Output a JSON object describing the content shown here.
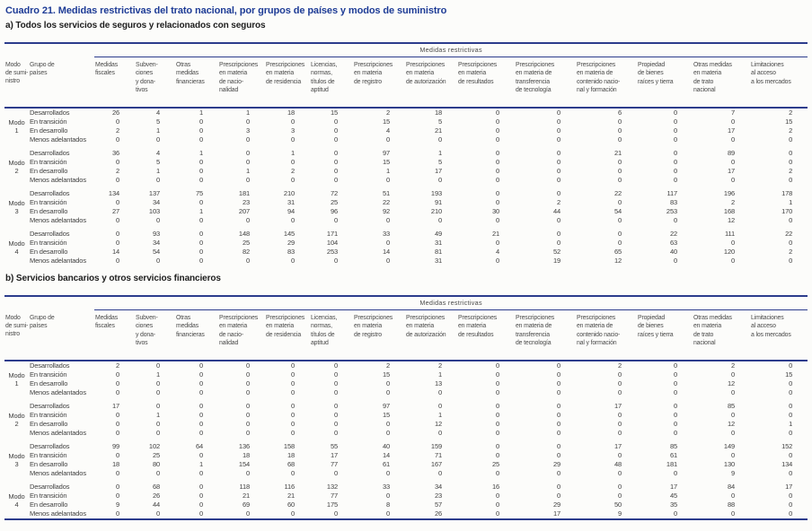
{
  "page": {
    "title": "Cuadro 21. Medidas restrictivas del trato nacional, por grupos de países y modos de suministro"
  },
  "colors": {
    "accent_navy": "#2c3c8c",
    "title_blue": "#1e3c96",
    "body_text": "#3f3f3f",
    "background": "#fcfcfa"
  },
  "table_header": {
    "group_label": "Medidas restrictivas",
    "mode_col": "Modo\nde sumi-\nnistro",
    "country_col": "Grupo de\npaíses",
    "measure_cols": [
      "Medidas\nfiscales",
      "Subven-\nciones\ny dona-\ntivos",
      "Otras\nmedidas\nfinancieras",
      "Prescripciones\nen materia\nde nacio-\nnalidad",
      "Prescripciones\nen materia\nde residencia",
      "Licencias,\nnormas,\ntítulos de\naptitud",
      "Prescripciones\nen materia\nde registro",
      "Prescripciones\nen materia\nde autorización",
      "Prescripciones\nen materia\nde resultados",
      "Prescripciones\nen materia de\ntransferencia\nde tecnología",
      "Prescripciones\nen materia de\ncontenido nacio-\nnal y formación",
      "Propiedad\nde bienes\nraíces y tierra",
      "Otras medidas\nen materia\nde trato\nnacional",
      "Limitaciones\nal acceso\na los mercados"
    ]
  },
  "tables": [
    {
      "subtitle": "a) Todos los servicios de seguros y relacionados con seguros",
      "modes": [
        {
          "label": "Modo\n1",
          "rows": [
            {
              "group": "Desarrollados",
              "values": [
                26,
                4,
                1,
                1,
                18,
                15,
                2,
                18,
                0,
                0,
                6,
                0,
                7,
                2
              ]
            },
            {
              "group": "En transición",
              "values": [
                0,
                5,
                0,
                0,
                0,
                0,
                15,
                5,
                0,
                0,
                0,
                0,
                0,
                15
              ]
            },
            {
              "group": "En desarrollo",
              "values": [
                2,
                1,
                0,
                3,
                3,
                0,
                4,
                21,
                0,
                0,
                0,
                0,
                17,
                2
              ]
            },
            {
              "group": "Menos adelantados",
              "values": [
                0,
                0,
                0,
                0,
                0,
                0,
                0,
                0,
                0,
                0,
                0,
                0,
                0,
                0
              ]
            }
          ]
        },
        {
          "label": "Modo\n2",
          "rows": [
            {
              "group": "Desarrollados",
              "values": [
                36,
                4,
                1,
                0,
                1,
                0,
                97,
                1,
                0,
                0,
                21,
                0,
                89,
                0
              ]
            },
            {
              "group": "En transición",
              "values": [
                0,
                5,
                0,
                0,
                0,
                0,
                15,
                5,
                0,
                0,
                0,
                0,
                0,
                0
              ]
            },
            {
              "group": "En desarrollo",
              "values": [
                2,
                1,
                0,
                1,
                2,
                0,
                1,
                17,
                0,
                0,
                0,
                0,
                17,
                2
              ]
            },
            {
              "group": "Menos adelantados",
              "values": [
                0,
                0,
                0,
                0,
                0,
                0,
                0,
                0,
                0,
                0,
                0,
                0,
                0,
                0
              ]
            }
          ]
        },
        {
          "label": "Modo\n3",
          "rows": [
            {
              "group": "Desarrollados",
              "values": [
                134,
                137,
                75,
                181,
                210,
                72,
                51,
                193,
                0,
                0,
                22,
                117,
                196,
                178
              ]
            },
            {
              "group": "En transición",
              "values": [
                0,
                34,
                0,
                23,
                31,
                25,
                22,
                91,
                0,
                2,
                0,
                83,
                2,
                1
              ]
            },
            {
              "group": "En desarrollo",
              "values": [
                27,
                103,
                1,
                207,
                94,
                96,
                92,
                210,
                30,
                44,
                54,
                253,
                168,
                170
              ]
            },
            {
              "group": "Menos adelantados",
              "values": [
                0,
                0,
                0,
                0,
                0,
                0,
                0,
                0,
                0,
                0,
                0,
                0,
                12,
                0
              ]
            }
          ]
        },
        {
          "label": "Modo\n4",
          "rows": [
            {
              "group": "Desarrollados",
              "values": [
                0,
                93,
                0,
                148,
                145,
                171,
                33,
                49,
                21,
                0,
                0,
                22,
                111,
                22
              ]
            },
            {
              "group": "En transición",
              "values": [
                0,
                34,
                0,
                25,
                29,
                104,
                0,
                31,
                0,
                0,
                0,
                63,
                0,
                0
              ]
            },
            {
              "group": "En desarrollo",
              "values": [
                14,
                54,
                0,
                82,
                83,
                253,
                14,
                81,
                4,
                52,
                65,
                40,
                120,
                2
              ]
            },
            {
              "group": "Menos adelantados",
              "values": [
                0,
                0,
                0,
                0,
                0,
                0,
                0,
                31,
                0,
                19,
                12,
                0,
                0,
                0
              ]
            }
          ]
        }
      ]
    },
    {
      "subtitle": "b) Servicios bancarios y otros servicios financieros",
      "modes": [
        {
          "label": "Modo\n1",
          "rows": [
            {
              "group": "Desarrollados",
              "values": [
                2,
                0,
                0,
                0,
                0,
                0,
                2,
                2,
                0,
                0,
                2,
                0,
                2,
                0
              ]
            },
            {
              "group": "En transición",
              "values": [
                0,
                1,
                0,
                0,
                0,
                0,
                15,
                1,
                0,
                0,
                0,
                0,
                0,
                15
              ]
            },
            {
              "group": "En desarrollo",
              "values": [
                0,
                0,
                0,
                0,
                0,
                0,
                0,
                13,
                0,
                0,
                0,
                0,
                12,
                0
              ]
            },
            {
              "group": "Menos adelantados",
              "values": [
                0,
                0,
                0,
                0,
                0,
                0,
                0,
                0,
                0,
                0,
                0,
                0,
                0,
                0
              ]
            }
          ]
        },
        {
          "label": "Modo\n2",
          "rows": [
            {
              "group": "Desarrollados",
              "values": [
                17,
                0,
                0,
                0,
                0,
                0,
                97,
                0,
                0,
                0,
                17,
                0,
                85,
                0
              ]
            },
            {
              "group": "En transición",
              "values": [
                0,
                1,
                0,
                0,
                0,
                0,
                15,
                1,
                0,
                0,
                0,
                0,
                0,
                0
              ]
            },
            {
              "group": "En desarrollo",
              "values": [
                0,
                0,
                0,
                0,
                0,
                0,
                0,
                12,
                0,
                0,
                0,
                0,
                12,
                1
              ]
            },
            {
              "group": "Menos adelantados",
              "values": [
                0,
                0,
                0,
                0,
                0,
                0,
                0,
                0,
                0,
                0,
                0,
                0,
                0,
                0
              ]
            }
          ]
        },
        {
          "label": "Modo\n3",
          "rows": [
            {
              "group": "Desarrollados",
              "values": [
                99,
                102,
                64,
                136,
                158,
                55,
                40,
                159,
                0,
                0,
                17,
                85,
                149,
                152
              ]
            },
            {
              "group": "En transición",
              "values": [
                0,
                25,
                0,
                18,
                18,
                17,
                14,
                71,
                0,
                0,
                0,
                61,
                0,
                0
              ]
            },
            {
              "group": "En desarrollo",
              "values": [
                18,
                80,
                1,
                154,
                68,
                77,
                61,
                167,
                25,
                29,
                48,
                181,
                130,
                134
              ]
            },
            {
              "group": "Menos adelantados",
              "values": [
                0,
                0,
                0,
                0,
                0,
                0,
                0,
                0,
                0,
                0,
                0,
                0,
                9,
                0
              ]
            }
          ]
        },
        {
          "label": "Modo\n4",
          "rows": [
            {
              "group": "Desarrollados",
              "values": [
                0,
                68,
                0,
                118,
                116,
                132,
                33,
                34,
                16,
                0,
                0,
                17,
                84,
                17
              ]
            },
            {
              "group": "En transición",
              "values": [
                0,
                26,
                0,
                21,
                21,
                77,
                0,
                23,
                0,
                0,
                0,
                45,
                0,
                0
              ]
            },
            {
              "group": "En desarrollo",
              "values": [
                9,
                44,
                0,
                69,
                60,
                175,
                8,
                57,
                0,
                29,
                50,
                35,
                88,
                0
              ]
            },
            {
              "group": "Menos adelantados",
              "values": [
                0,
                0,
                0,
                0,
                0,
                0,
                0,
                26,
                0,
                17,
                9,
                0,
                0,
                0
              ]
            }
          ]
        }
      ]
    }
  ]
}
